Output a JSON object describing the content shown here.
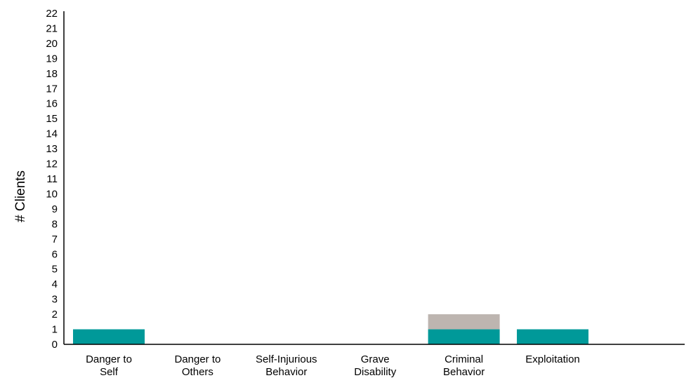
{
  "chart_data": {
    "type": "bar",
    "stacked": true,
    "title": "",
    "xlabel": "",
    "ylabel": "# Clients",
    "ylim": [
      0,
      22
    ],
    "yticks": [
      "0",
      "1",
      "2",
      "3",
      "4",
      "5",
      "6",
      "7",
      "8",
      "9",
      "10",
      "11",
      "12",
      "13",
      "14",
      "15",
      "16",
      "17",
      "18",
      "19",
      "20",
      "21",
      "22"
    ],
    "grid": false,
    "legend": "none",
    "categories": [
      [
        "Danger to",
        "Self"
      ],
      [
        "Danger to",
        "Others"
      ],
      [
        "Self-Injurious",
        "Behavior"
      ],
      [
        "Grave",
        "Disability"
      ],
      [
        "Criminal",
        "Behavior"
      ],
      [
        "Exploitation"
      ]
    ],
    "series": [
      {
        "color": "#009999",
        "values": [
          1,
          0,
          0,
          0,
          1,
          1
        ]
      },
      {
        "color": "#bdb5b0",
        "values": [
          0,
          0,
          0,
          0,
          1,
          0
        ]
      }
    ]
  }
}
